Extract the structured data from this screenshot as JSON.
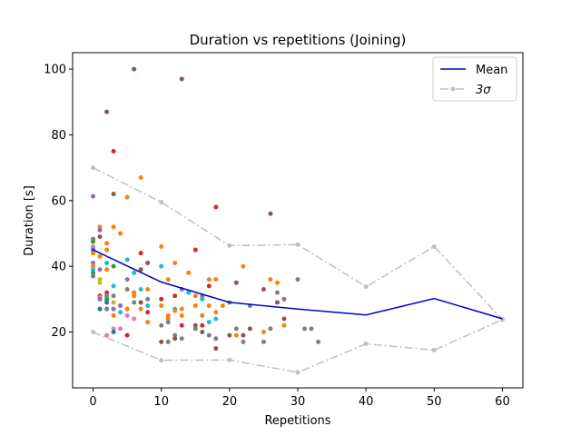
{
  "chart_data": {
    "type": "scatter",
    "title": "Duration vs repetitions (Joining)",
    "xlabel": "Repetitions",
    "ylabel": "Duration [s]",
    "xlim": [
      -3,
      63
    ],
    "ylim": [
      3,
      105
    ],
    "xticks": [
      0,
      10,
      20,
      30,
      40,
      50,
      60
    ],
    "yticks": [
      20,
      40,
      60,
      80,
      100
    ],
    "legend_position": "top-right",
    "grid": false,
    "series": [
      {
        "name": "Mean",
        "kind": "line",
        "color": "#0000cc",
        "x": [
          0,
          10,
          20,
          30,
          40,
          50,
          60
        ],
        "y": [
          45,
          35.2,
          29,
          27,
          25.2,
          30.2,
          24
        ]
      },
      {
        "name": "3σ",
        "kind": "dashdot",
        "color": "#bfbfbf",
        "upper": {
          "x": [
            0,
            10,
            20,
            30,
            40,
            50,
            60
          ],
          "y": [
            70,
            59.5,
            46.3,
            46.6,
            33.8,
            46,
            23.8
          ]
        },
        "lower": {
          "x": [
            0,
            10,
            20,
            30,
            40,
            50,
            60
          ],
          "y": [
            20,
            11.4,
            11.5,
            7.7,
            16.4,
            14.5,
            23.8
          ]
        }
      }
    ],
    "points": [
      {
        "x": 0,
        "y": 61.3,
        "color": "#9467bd"
      },
      {
        "x": 0,
        "y": 48.3,
        "color": "#7f7f7f"
      },
      {
        "x": 0,
        "y": 47.5,
        "color": "#2ca02c"
      },
      {
        "x": 0,
        "y": 46,
        "color": "#e377c2"
      },
      {
        "x": 0,
        "y": 45,
        "color": "#1f77b4"
      },
      {
        "x": 0,
        "y": 44,
        "color": "#ff7f0e"
      },
      {
        "x": 0,
        "y": 41,
        "color": "#9467bd"
      },
      {
        "x": 0,
        "y": 40,
        "color": "#ff7f0e"
      },
      {
        "x": 0,
        "y": 39,
        "color": "#17becf"
      },
      {
        "x": 0,
        "y": 38,
        "color": "#2ca02c"
      },
      {
        "x": 0,
        "y": 37,
        "color": "#9467bd"
      },
      {
        "x": 1,
        "y": 52,
        "color": "#ff7f0e"
      },
      {
        "x": 1,
        "y": 51,
        "color": "#9467bd"
      },
      {
        "x": 1,
        "y": 49,
        "color": "#8c564b"
      },
      {
        "x": 1,
        "y": 43,
        "color": "#ff7f0e"
      },
      {
        "x": 1,
        "y": 39,
        "color": "#9467bd"
      },
      {
        "x": 1,
        "y": 36,
        "color": "#bcbd22"
      },
      {
        "x": 1,
        "y": 35,
        "color": "#bcbd22"
      },
      {
        "x": 1,
        "y": 31,
        "color": "#d62728"
      },
      {
        "x": 1,
        "y": 30.5,
        "color": "#e377c2"
      },
      {
        "x": 1,
        "y": 30,
        "color": "#9467bd"
      },
      {
        "x": 1,
        "y": 27,
        "color": "#1f77b4"
      },
      {
        "x": 2,
        "y": 87,
        "color": "#8c564b"
      },
      {
        "x": 2,
        "y": 47,
        "color": "#ff7f0e"
      },
      {
        "x": 2,
        "y": 45,
        "color": "#ff7f0e"
      },
      {
        "x": 2,
        "y": 41,
        "color": "#17becf"
      },
      {
        "x": 2,
        "y": 39,
        "color": "#ff7f0e"
      },
      {
        "x": 2,
        "y": 32,
        "color": "#d62728"
      },
      {
        "x": 2,
        "y": 31,
        "color": "#7f7f7f"
      },
      {
        "x": 2,
        "y": 30,
        "color": "#2ca02c"
      },
      {
        "x": 2,
        "y": 29,
        "color": "#1f77b4"
      },
      {
        "x": 2,
        "y": 27,
        "color": "#7f7f7f"
      },
      {
        "x": 2,
        "y": 19,
        "color": "#e377c2"
      },
      {
        "x": 3,
        "y": 75,
        "color": "#d62728"
      },
      {
        "x": 3,
        "y": 62,
        "color": "#8c564b"
      },
      {
        "x": 3,
        "y": 52,
        "color": "#ff7f0e"
      },
      {
        "x": 3,
        "y": 40,
        "color": "#2ca02c"
      },
      {
        "x": 3,
        "y": 34,
        "color": "#17becf"
      },
      {
        "x": 3,
        "y": 31,
        "color": "#7f7f7f"
      },
      {
        "x": 3,
        "y": 29,
        "color": "#bcbd22"
      },
      {
        "x": 3,
        "y": 27,
        "color": "#9467bd"
      },
      {
        "x": 3,
        "y": 25,
        "color": "#ff7f0e"
      },
      {
        "x": 3,
        "y": 21,
        "color": "#e377c2"
      },
      {
        "x": 3,
        "y": 20,
        "color": "#1f77b4"
      },
      {
        "x": 4,
        "y": 50,
        "color": "#ff7f0e"
      },
      {
        "x": 4,
        "y": 28,
        "color": "#9467bd"
      },
      {
        "x": 4,
        "y": 26,
        "color": "#17becf"
      },
      {
        "x": 4,
        "y": 21,
        "color": "#e377c2"
      },
      {
        "x": 5,
        "y": 61,
        "color": "#ff7f0e"
      },
      {
        "x": 5,
        "y": 42,
        "color": "#17becf"
      },
      {
        "x": 5,
        "y": 36,
        "color": "#9467bd"
      },
      {
        "x": 5,
        "y": 33,
        "color": "#7f7f7f"
      },
      {
        "x": 5,
        "y": 27,
        "color": "#ff7f0e"
      },
      {
        "x": 5,
        "y": 25,
        "color": "#e377c2"
      },
      {
        "x": 5,
        "y": 19,
        "color": "#d62728"
      },
      {
        "x": 6,
        "y": 100,
        "color": "#8c564b"
      },
      {
        "x": 6,
        "y": 38,
        "color": "#17becf"
      },
      {
        "x": 6,
        "y": 32,
        "color": "#ff7f0e"
      },
      {
        "x": 6,
        "y": 31,
        "color": "#ff7f0e"
      },
      {
        "x": 6,
        "y": 29,
        "color": "#7f7f7f"
      },
      {
        "x": 6,
        "y": 24,
        "color": "#e377c2"
      },
      {
        "x": 7,
        "y": 67,
        "color": "#ff7f0e"
      },
      {
        "x": 7,
        "y": 44,
        "color": "#d62728"
      },
      {
        "x": 7,
        "y": 39,
        "color": "#8c564b"
      },
      {
        "x": 7,
        "y": 33,
        "color": "#17becf"
      },
      {
        "x": 7,
        "y": 29,
        "color": "#8c564b"
      },
      {
        "x": 7,
        "y": 27,
        "color": "#ff7f0e"
      },
      {
        "x": 8,
        "y": 41,
        "color": "#8c564b"
      },
      {
        "x": 8,
        "y": 33,
        "color": "#ff7f0e"
      },
      {
        "x": 8,
        "y": 30,
        "color": "#7f7f7f"
      },
      {
        "x": 8,
        "y": 28,
        "color": "#17becf"
      },
      {
        "x": 8,
        "y": 26,
        "color": "#d62728"
      },
      {
        "x": 8,
        "y": 23,
        "color": "#ff7f0e"
      },
      {
        "x": 10,
        "y": 46,
        "color": "#ff7f0e"
      },
      {
        "x": 10,
        "y": 40,
        "color": "#17becf"
      },
      {
        "x": 10,
        "y": 30,
        "color": "#d62728"
      },
      {
        "x": 10,
        "y": 28,
        "color": "#ff7f0e"
      },
      {
        "x": 10,
        "y": 22,
        "color": "#7f7f7f"
      },
      {
        "x": 10,
        "y": 17,
        "color": "#8c564b"
      },
      {
        "x": 11,
        "y": 36,
        "color": "#ff7f0e"
      },
      {
        "x": 11,
        "y": 25,
        "color": "#ff7f0e"
      },
      {
        "x": 11,
        "y": 24,
        "color": "#ff7f0e"
      },
      {
        "x": 11,
        "y": 23,
        "color": "#7f7f7f"
      },
      {
        "x": 11,
        "y": 17,
        "color": "#7f7f7f"
      },
      {
        "x": 12,
        "y": 41,
        "color": "#ff7f0e"
      },
      {
        "x": 12,
        "y": 31,
        "color": "#d62728"
      },
      {
        "x": 12,
        "y": 27,
        "color": "#17becf"
      },
      {
        "x": 12,
        "y": 26.5,
        "color": "#ff7f0e"
      },
      {
        "x": 12,
        "y": 19,
        "color": "#7f7f7f"
      },
      {
        "x": 12,
        "y": 18,
        "color": "#8c564b"
      },
      {
        "x": 13,
        "y": 97,
        "color": "#8c564b"
      },
      {
        "x": 13,
        "y": 33,
        "color": "#9467bd"
      },
      {
        "x": 13,
        "y": 27,
        "color": "#ff7f0e"
      },
      {
        "x": 13,
        "y": 25,
        "color": "#ff7f0e"
      },
      {
        "x": 13,
        "y": 22,
        "color": "#d62728"
      },
      {
        "x": 13,
        "y": 18,
        "color": "#7f7f7f"
      },
      {
        "x": 14,
        "y": 38,
        "color": "#ff7f0e"
      },
      {
        "x": 14,
        "y": 32,
        "color": "#17becf"
      },
      {
        "x": 15,
        "y": 45,
        "color": "#d62728"
      },
      {
        "x": 15,
        "y": 31,
        "color": "#ff7f0e"
      },
      {
        "x": 15,
        "y": 28,
        "color": "#ff7f0e"
      },
      {
        "x": 15,
        "y": 22,
        "color": "#8c564b"
      },
      {
        "x": 15,
        "y": 21,
        "color": "#7f7f7f"
      },
      {
        "x": 16,
        "y": 31,
        "color": "#7f7f7f"
      },
      {
        "x": 16,
        "y": 30,
        "color": "#17becf"
      },
      {
        "x": 16,
        "y": 25,
        "color": "#ff7f0e"
      },
      {
        "x": 16,
        "y": 22,
        "color": "#d62728"
      },
      {
        "x": 16,
        "y": 20,
        "color": "#8c564b"
      },
      {
        "x": 17,
        "y": 36,
        "color": "#ff7f0e"
      },
      {
        "x": 17,
        "y": 34,
        "color": "#d62728"
      },
      {
        "x": 17,
        "y": 28,
        "color": "#ff7f0e"
      },
      {
        "x": 17,
        "y": 23,
        "color": "#17becf"
      },
      {
        "x": 17,
        "y": 19,
        "color": "#7f7f7f"
      },
      {
        "x": 18,
        "y": 58,
        "color": "#d62728"
      },
      {
        "x": 18,
        "y": 36,
        "color": "#ff7f0e"
      },
      {
        "x": 18,
        "y": 26,
        "color": "#ff7f0e"
      },
      {
        "x": 18,
        "y": 24,
        "color": "#17becf"
      },
      {
        "x": 18,
        "y": 18,
        "color": "#7f7f7f"
      },
      {
        "x": 18,
        "y": 15,
        "color": "#8c564b"
      },
      {
        "x": 19,
        "y": 28,
        "color": "#ff7f0e"
      },
      {
        "x": 20,
        "y": 29,
        "color": "#7f7f7f"
      },
      {
        "x": 20,
        "y": 19,
        "color": "#8c564b"
      },
      {
        "x": 21,
        "y": 35,
        "color": "#8c564b"
      },
      {
        "x": 21,
        "y": 21,
        "color": "#7f7f7f"
      },
      {
        "x": 21,
        "y": 19,
        "color": "#ff7f0e"
      },
      {
        "x": 22,
        "y": 40,
        "color": "#ff7f0e"
      },
      {
        "x": 22,
        "y": 19,
        "color": "#8c564b"
      },
      {
        "x": 22,
        "y": 17,
        "color": "#7f7f7f"
      },
      {
        "x": 23,
        "y": 28,
        "color": "#7f7f7f"
      },
      {
        "x": 23,
        "y": 21,
        "color": "#8c564b"
      },
      {
        "x": 25,
        "y": 33,
        "color": "#8c564b"
      },
      {
        "x": 25,
        "y": 20,
        "color": "#ff7f0e"
      },
      {
        "x": 25,
        "y": 17,
        "color": "#7f7f7f"
      },
      {
        "x": 26,
        "y": 56,
        "color": "#8c564b"
      },
      {
        "x": 26,
        "y": 36,
        "color": "#ff7f0e"
      },
      {
        "x": 26,
        "y": 21,
        "color": "#7f7f7f"
      },
      {
        "x": 27,
        "y": 35,
        "color": "#ff7f0e"
      },
      {
        "x": 27,
        "y": 32,
        "color": "#7f7f7f"
      },
      {
        "x": 27,
        "y": 29,
        "color": "#8c564b"
      },
      {
        "x": 28,
        "y": 30,
        "color": "#7f7f7f"
      },
      {
        "x": 28,
        "y": 24,
        "color": "#8c564b"
      },
      {
        "x": 28,
        "y": 22,
        "color": "#ff7f0e"
      },
      {
        "x": 30,
        "y": 36,
        "color": "#7f7f7f"
      },
      {
        "x": 31,
        "y": 21,
        "color": "#7f7f7f"
      },
      {
        "x": 32,
        "y": 21,
        "color": "#7f7f7f"
      },
      {
        "x": 33,
        "y": 17,
        "color": "#7f7f7f"
      }
    ]
  }
}
